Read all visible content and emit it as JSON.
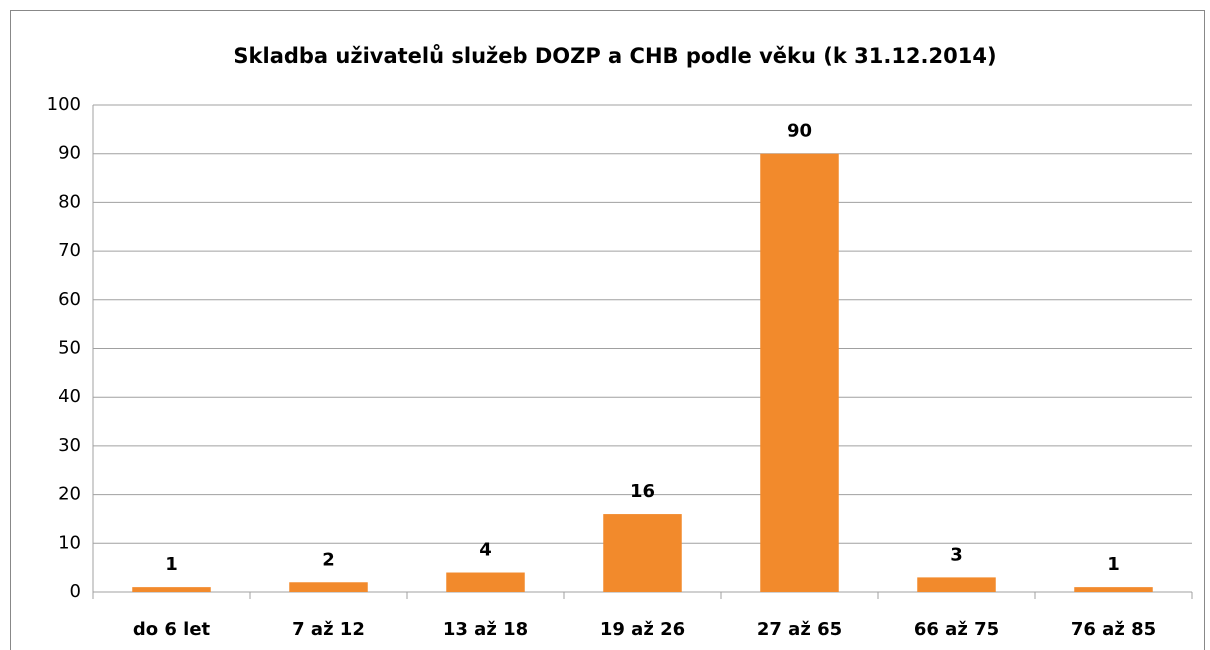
{
  "chart_data": {
    "type": "bar",
    "title": "Skladba uživatelů služeb DOZP a CHB podle věku (k 31.12.2014)",
    "categories": [
      "do 6 let",
      "7 až 12",
      "13 až 18",
      "19 až 26",
      "27 až 65",
      "66 až 75",
      "76 až 85"
    ],
    "values": [
      1,
      2,
      4,
      16,
      90,
      3,
      1
    ],
    "color": "#f28a2c",
    "ylim": [
      0,
      100
    ],
    "yticks": [
      0,
      10,
      20,
      30,
      40,
      50,
      60,
      70,
      80,
      90,
      100
    ],
    "grid": true
  }
}
